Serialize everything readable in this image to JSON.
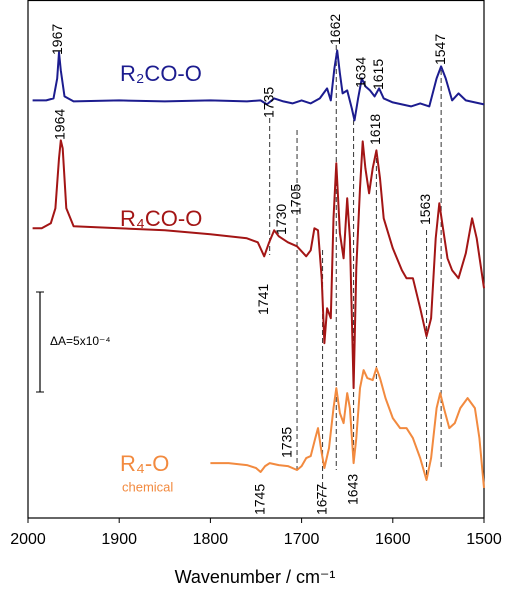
{
  "chart_data": {
    "type": "line",
    "xlabel": "Wavenumber / cm⁻¹",
    "xlim": [
      2000,
      1500
    ],
    "xticks": [
      2000,
      1900,
      1800,
      1700,
      1600,
      1500
    ],
    "ylim": [
      0,
      518
    ],
    "series": [
      {
        "name": "R₂CO-O",
        "color": "#1c1c8f",
        "x": [
          1995,
          1980,
          1972,
          1968,
          1966,
          1964,
          1960,
          1950,
          1900,
          1850,
          1800,
          1760,
          1745,
          1738,
          1730,
          1720,
          1710,
          1700,
          1690,
          1680,
          1672,
          1668,
          1664,
          1661,
          1658,
          1655,
          1650,
          1645,
          1642,
          1638,
          1634,
          1630,
          1625,
          1620,
          1615,
          1610,
          1600,
          1590,
          1580,
          1570,
          1560,
          1552,
          1547,
          1542,
          1535,
          1528,
          1520,
          1510,
          1500
        ],
        "values": [
          418,
          418,
          420,
          440,
          466,
          448,
          422,
          417,
          418,
          417,
          418,
          417,
          418,
          414,
          420,
          417,
          415,
          418,
          415,
          420,
          430,
          418,
          450,
          468,
          445,
          425,
          428,
          410,
          398,
          420,
          440,
          432,
          428,
          422,
          430,
          420,
          416,
          414,
          412,
          415,
          412,
          440,
          452,
          440,
          418,
          425,
          418,
          416,
          414
        ]
      },
      {
        "name": "R₄CO-O",
        "color": "#a31515",
        "x": [
          1995,
          1985,
          1975,
          1970,
          1966,
          1964,
          1962,
          1958,
          1950,
          1900,
          1850,
          1800,
          1760,
          1748,
          1741,
          1736,
          1730,
          1725,
          1715,
          1705,
          1695,
          1690,
          1686,
          1682,
          1678,
          1675,
          1672,
          1668,
          1665,
          1662,
          1658,
          1654,
          1650,
          1647,
          1643,
          1640,
          1636,
          1633,
          1630,
          1626,
          1622,
          1618,
          1614,
          1610,
          1600,
          1590,
          1585,
          1578,
          1570,
          1563,
          1558,
          1553,
          1549,
          1545,
          1540,
          1535,
          1528,
          1520,
          1513,
          1508,
          1500
        ],
        "values": [
          290,
          290,
          295,
          310,
          360,
          378,
          370,
          310,
          292,
          290,
          288,
          284,
          280,
          276,
          262,
          275,
          288,
          282,
          276,
          272,
          262,
          268,
          290,
          288,
          240,
          175,
          210,
          200,
          300,
          355,
          285,
          260,
          320,
          280,
          130,
          250,
          330,
          377,
          350,
          325,
          350,
          368,
          340,
          300,
          270,
          248,
          240,
          240,
          210,
          182,
          200,
          280,
          315,
          290,
          260,
          248,
          240,
          265,
          300,
          280,
          230
        ]
      },
      {
        "name": "R₄-O",
        "subtitle": "chemical",
        "color": "#f28a3f",
        "x": [
          1800,
          1780,
          1760,
          1750,
          1745,
          1740,
          1735,
          1725,
          1715,
          1705,
          1700,
          1695,
          1690,
          1685,
          1682,
          1678,
          1675,
          1670,
          1665,
          1662,
          1658,
          1654,
          1650,
          1647,
          1643,
          1640,
          1636,
          1632,
          1628,
          1622,
          1618,
          1614,
          1608,
          1600,
          1592,
          1585,
          1578,
          1570,
          1563,
          1558,
          1552,
          1548,
          1544,
          1538,
          1532,
          1526,
          1518,
          1510,
          1505,
          1500
        ],
        "values": [
          55,
          55,
          53,
          50,
          46,
          52,
          55,
          53,
          52,
          48,
          52,
          60,
          62,
          80,
          90,
          65,
          50,
          70,
          110,
          130,
          105,
          95,
          125,
          110,
          55,
          80,
          130,
          148,
          140,
          138,
          150,
          140,
          120,
          100,
          90,
          90,
          80,
          60,
          38,
          60,
          110,
          125,
          110,
          90,
          95,
          110,
          120,
          110,
          80,
          30
        ]
      }
    ],
    "peak_labels": [
      1967,
      1735,
      1662,
      1634,
      1615,
      1547,
      1964,
      1730,
      1705,
      1618,
      1563,
      1741,
      1745,
      1735,
      1677,
      1643
    ],
    "scale_bar_label": "ΔA=5x10⁻⁴"
  }
}
